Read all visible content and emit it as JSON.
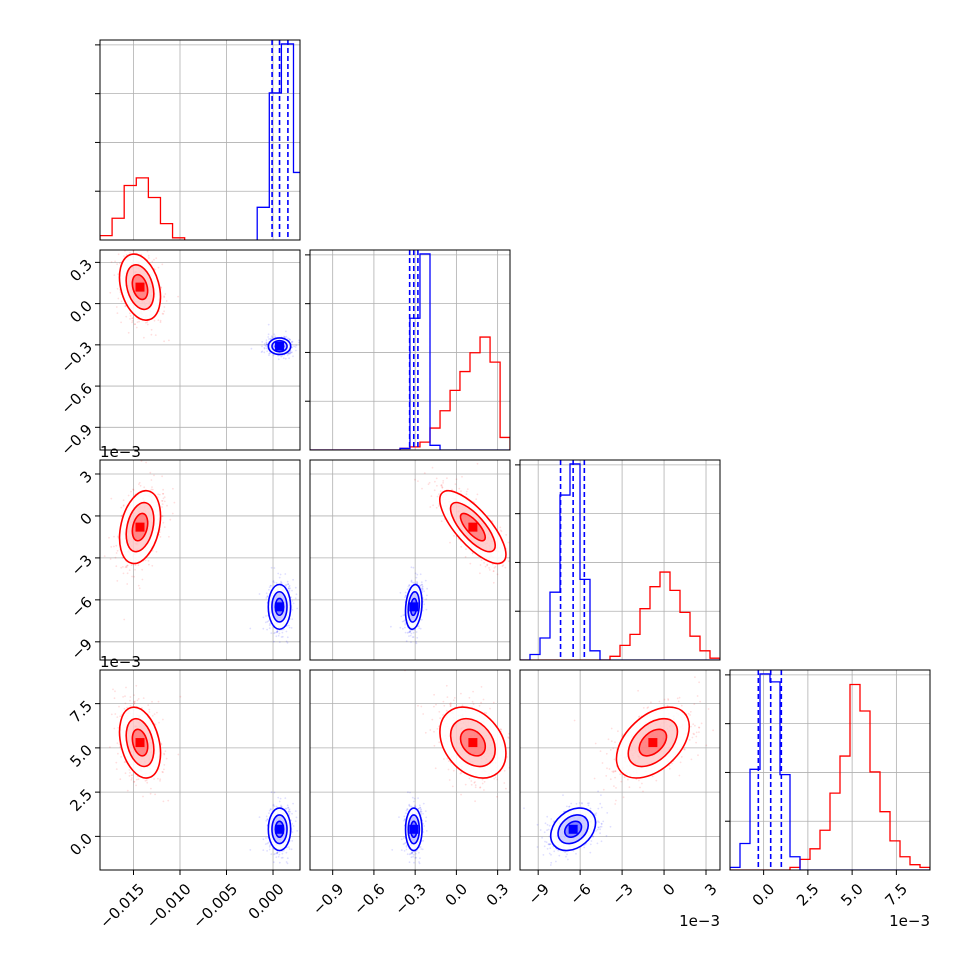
{
  "chart_data": {
    "type": "corner",
    "parameters": [
      {
        "range": [
          -0.0186,
          0.0029
        ],
        "ticks": [
          -0.015,
          -0.01,
          -0.005,
          0.0
        ],
        "tick_labels": [
          "−0.015",
          "−0.010",
          "−0.005",
          "0.000"
        ],
        "offset_text": ""
      },
      {
        "range": [
          -1.065,
          0.39
        ],
        "ticks": [
          -0.9,
          -0.6,
          -0.3,
          0.0,
          0.3
        ],
        "tick_labels": [
          "−0.9",
          "−0.6",
          "−0.3",
          "0.0",
          "0.3"
        ],
        "offset_text": ""
      },
      {
        "range": [
          -10.3,
          4.0
        ],
        "ticks": [
          -9,
          -6,
          -3,
          0,
          3
        ],
        "tick_labels": [
          "−9",
          "−6",
          "−3",
          "0",
          "3"
        ],
        "offset_text": "1e−3"
      },
      {
        "range": [
          -1.9,
          9.4
        ],
        "ticks": [
          0.0,
          2.5,
          5.0,
          7.5
        ],
        "tick_labels": [
          "0.0",
          "2.5",
          "5.0",
          "7.5"
        ],
        "offset_text": "1e−3"
      }
    ],
    "series": [
      {
        "color": "#ff0000",
        "mean": [
          -0.0143,
          0.12,
          -0.8,
          5.3
        ],
        "std": [
          0.0011,
          0.12,
          1.3,
          1.0
        ],
        "histograms": [
          {
            "edges": [
              -0.0186,
              -0.0173,
              -0.016,
              -0.0147,
              -0.0134,
              -0.0121,
              -0.0108,
              -0.0095
            ],
            "counts": [
              4,
              20,
              50,
              57,
              39,
              15,
              2
            ]
          },
          {
            "edges": [
              -1.065,
              -0.992,
              -0.92,
              -0.847,
              -0.774,
              -0.701,
              -0.629,
              -0.556,
              -0.483,
              -0.41,
              -0.338,
              -0.265,
              -0.192,
              -0.119,
              -0.046,
              0.026,
              0.099,
              0.172,
              0.245,
              0.318,
              0.39
            ],
            "counts": [
              0,
              0,
              0,
              0,
              0,
              0,
              0,
              0,
              0,
              1,
              2,
              5,
              14,
              25,
              38,
              50,
              62,
              72,
              56,
              8
            ]
          },
          {
            "edges": [
              -10.3,
              -9.585,
              -8.87,
              -8.155,
              -7.44,
              -6.725,
              -6.01,
              -5.295,
              -4.58,
              -3.865,
              -3.15,
              -2.435,
              -1.72,
              -1.005,
              -0.29,
              0.425,
              1.14,
              1.855,
              2.57,
              3.285,
              4.0
            ],
            "counts": [
              0,
              0,
              0,
              0,
              0,
              0,
              0,
              0,
              0,
              2,
              8,
              14,
              28,
              40,
              48,
              38,
              26,
              13,
              5,
              1
            ]
          },
          {
            "edges": [
              -1.9,
              -1.335,
              -0.77,
              -0.205,
              0.36,
              0.925,
              1.49,
              2.055,
              2.62,
              3.185,
              3.75,
              4.315,
              4.88,
              5.445,
              6.01,
              6.575,
              7.14,
              7.705,
              8.27,
              8.835,
              9.4
            ],
            "counts": [
              0,
              0,
              0,
              0,
              0,
              0,
              1,
              4,
              8,
              15,
              29,
              43,
              70,
              60,
              37,
              22,
              11,
              5,
              2,
              1
            ]
          }
        ],
        "quantile_lines": [
          [],
          [],
          [],
          []
        ]
      },
      {
        "color": "#0000ff",
        "mean": [
          0.0007,
          -0.31,
          -6.5,
          0.4
        ],
        "std": [
          0.0006,
          0.03,
          0.8,
          0.6
        ],
        "histograms": [
          {
            "edges": [
              -0.0017,
              -0.0004,
              0.0009,
              0.0022,
              0.0035
            ],
            "counts": [
              30,
              135,
              180,
              62
            ]
          },
          {
            "edges": [
              -1.065,
              -0.992,
              -0.92,
              -0.847,
              -0.774,
              -0.701,
              -0.629,
              -0.556,
              -0.483,
              -0.41,
              -0.338,
              -0.265,
              -0.192,
              -0.119,
              -0.046,
              0.026,
              0.099,
              0.172,
              0.245,
              0.318,
              0.39
            ],
            "counts": [
              0,
              0,
              0,
              0,
              0,
              0,
              0,
              0,
              0,
              1,
              84,
              125,
              3,
              0,
              0,
              0,
              0,
              0,
              0,
              0
            ]
          },
          {
            "edges": [
              -10.3,
              -9.585,
              -8.87,
              -8.155,
              -7.44,
              -6.725,
              -6.01,
              -5.295,
              -4.58,
              -3.865,
              -3.15,
              -2.435,
              -1.72,
              -1.005,
              -0.29,
              0.425,
              1.14,
              1.855,
              2.57,
              3.285,
              4.0
            ],
            "counts": [
              0,
              3,
              12,
              37,
              90,
              107,
              44,
              5,
              0,
              0,
              0,
              0,
              0,
              0,
              0,
              0,
              0,
              0,
              0,
              0
            ]
          },
          {
            "edges": [
              -1.9,
              -1.335,
              -0.77,
              -0.205,
              0.36,
              0.925,
              1.49,
              2.055,
              2.62,
              3.185,
              3.75,
              4.315,
              4.88,
              5.445,
              6.01,
              6.575,
              7.14,
              7.705,
              8.27,
              8.835,
              9.4
            ],
            "counts": [
              1,
              10,
              38,
              74,
              71,
              36,
              5,
              0,
              0,
              0,
              0,
              0,
              0,
              0,
              0,
              0,
              0,
              0,
              0,
              0
            ]
          }
        ],
        "quantile_lines": [
          [
            -0.0001,
            0.0007,
            0.0016
          ],
          [
            -0.34,
            -0.31,
            -0.28
          ],
          [
            -7.4,
            -6.5,
            -5.7
          ],
          [
            -0.3,
            0.4,
            1.0
          ]
        ]
      }
    ],
    "correlations": [
      {
        "i": 1,
        "j": 0,
        "red": -0.3,
        "blue": 0.0
      },
      {
        "i": 2,
        "j": 0,
        "red": 0.3,
        "blue": 0.0
      },
      {
        "i": 2,
        "j": 1,
        "red": -0.75,
        "blue": 0.2
      },
      {
        "i": 3,
        "j": 0,
        "red": -0.3,
        "blue": 0.0
      },
      {
        "i": 3,
        "j": 1,
        "red": -0.3,
        "blue": 0.0
      },
      {
        "i": 3,
        "j": 2,
        "red": 0.45,
        "blue": 0.3
      }
    ],
    "grid": true,
    "scatter_points": true,
    "contour_levels": 3
  }
}
